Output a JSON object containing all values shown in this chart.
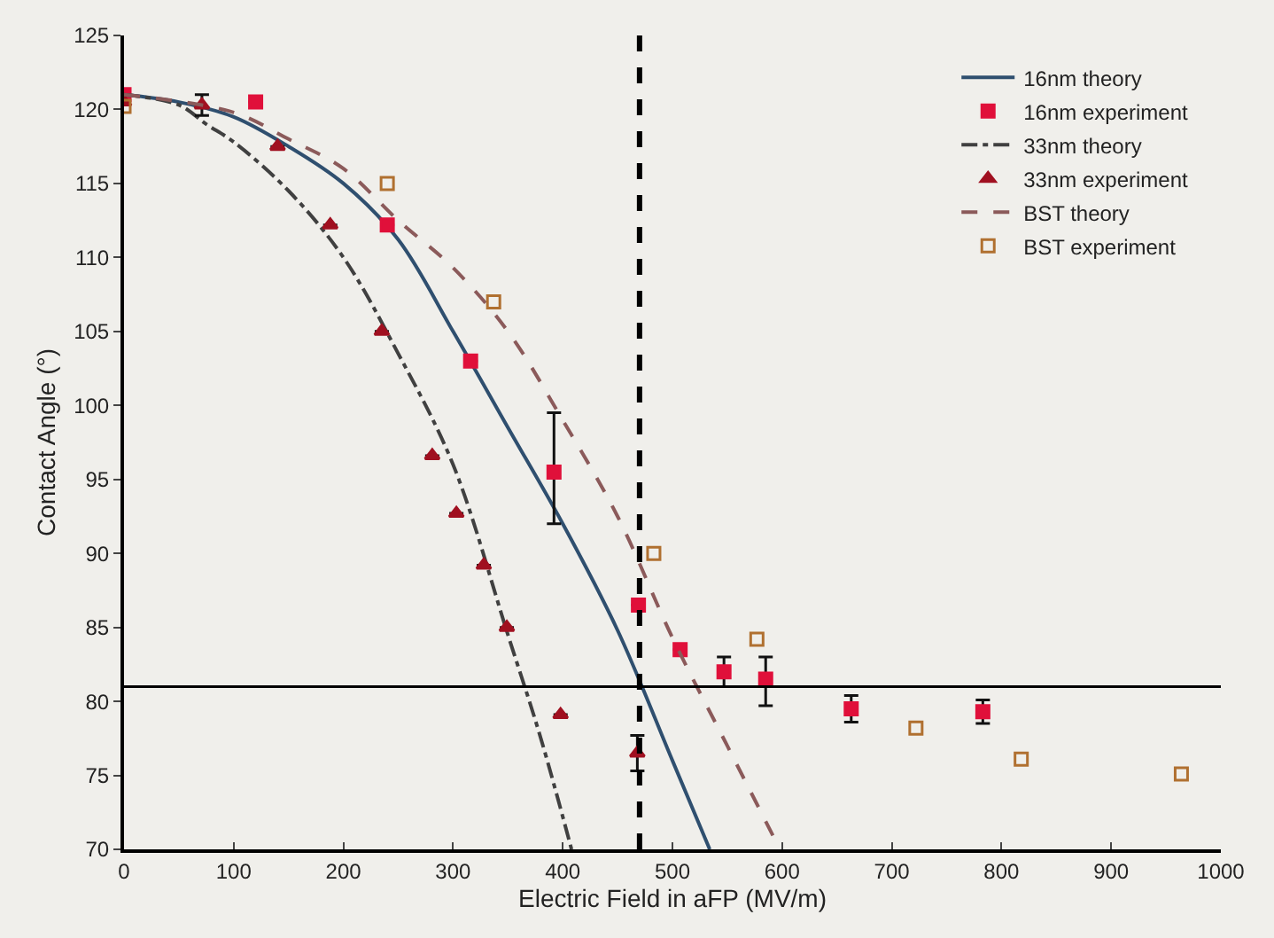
{
  "chart_data": {
    "type": "scatter",
    "xlabel": "Electric Field in aFP (MV/m)",
    "ylabel": "Contact Angle (°)",
    "xlim": [
      0,
      1000
    ],
    "xticks": [
      0,
      100,
      200,
      300,
      400,
      500,
      600,
      700,
      800,
      900,
      1000
    ],
    "ylim": [
      70,
      125
    ],
    "yticks": [
      70,
      75,
      80,
      85,
      90,
      95,
      100,
      105,
      110,
      115,
      120,
      125
    ],
    "grid": false,
    "legend": "top right",
    "ref_lines": [
      {
        "axis": "y",
        "value": 81,
        "color": "#000000",
        "line_style": "solid"
      },
      {
        "axis": "x",
        "value": 470,
        "color": "#000000",
        "line_style": "dashed"
      }
    ],
    "series": [
      {
        "name": "16nm theory",
        "type": "line",
        "color": "#2f4f6f",
        "line_style": "solid",
        "marker": "none",
        "x": [
          0,
          50,
          100,
          150,
          200,
          250,
          300,
          350,
          400,
          450,
          500,
          534
        ],
        "values": [
          121,
          120.5,
          119.5,
          117.5,
          115,
          111.2,
          105,
          98.5,
          92,
          84.8,
          76,
          70
        ]
      },
      {
        "name": "16nm experiment",
        "color": "#e0103a",
        "marker": "square",
        "x": [
          0,
          120,
          240,
          316,
          392,
          469,
          507,
          547,
          585,
          663,
          783
        ],
        "values": [
          121,
          120.5,
          112.2,
          103,
          95.5,
          86.5,
          83.5,
          82,
          81.5,
          79.5,
          79.3
        ],
        "errors": [
          null,
          null,
          null,
          null,
          [
            92,
            99.5
          ],
          null,
          null,
          1,
          [
            79.7,
            83
          ],
          0.9,
          0.8
        ]
      },
      {
        "name": "33nm theory",
        "type": "line",
        "color": "#404040",
        "line_style": "dashdot",
        "marker": "none",
        "x": [
          0,
          50,
          75,
          100,
          150,
          200,
          250,
          300,
          350,
          380,
          408
        ],
        "values": [
          121,
          120.3,
          119,
          117.8,
          114.5,
          110,
          103.5,
          96,
          84.5,
          77.5,
          70
        ]
      },
      {
        "name": "33nm experiment",
        "color": "#a01020",
        "marker": "triangle",
        "x": [
          0,
          71,
          140,
          188,
          235,
          281,
          303,
          328,
          349,
          398,
          468
        ],
        "values": [
          120.5,
          120.3,
          117.5,
          112.2,
          105,
          96.6,
          92.7,
          89.2,
          85,
          79.1,
          76.5
        ],
        "errors": [
          null,
          0.7,
          null,
          null,
          null,
          null,
          null,
          null,
          null,
          null,
          1.2
        ]
      },
      {
        "name": "BST theory",
        "type": "line",
        "color": "#8b5a5a",
        "line_style": "dashed",
        "marker": "none",
        "x": [
          0,
          100,
          150,
          200,
          250,
          300,
          350,
          400,
          450,
          500,
          550,
          598
        ],
        "values": [
          121,
          119.8,
          118,
          116,
          112.5,
          109.3,
          105,
          99,
          92.5,
          84.3,
          77,
          70
        ]
      },
      {
        "name": "BST experiment",
        "color": "#b07030",
        "marker": "square-open",
        "x": [
          0,
          240,
          337,
          483,
          577,
          722,
          818,
          964
        ],
        "values": [
          120.2,
          115,
          107,
          90,
          84.2,
          78.2,
          76.1,
          75.1
        ]
      }
    ]
  }
}
